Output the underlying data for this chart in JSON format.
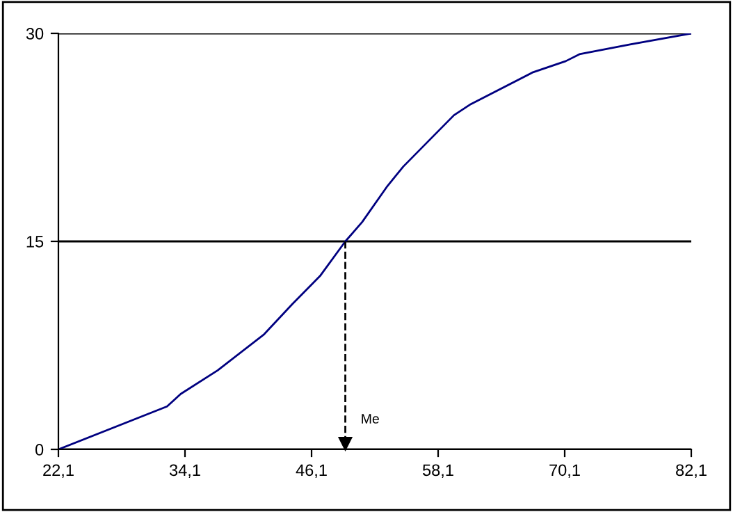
{
  "chart_data": {
    "type": "line",
    "x": [
      22.1,
      32.4,
      33.7,
      37.2,
      41.6,
      44.3,
      46.9,
      49.3,
      50.9,
      53.3,
      54.8,
      59.6,
      61.2,
      67.1,
      70.2,
      71.5,
      76.3,
      82.1
    ],
    "series": [
      {
        "color": "#000080",
        "values": [
          0,
          3.1,
          4.0,
          5.7,
          8.3,
          10.5,
          12.5,
          15.0,
          16.4,
          19.0,
          20.4,
          24.1,
          24.9,
          27.2,
          28.0,
          28.5,
          29.2,
          30
        ]
      }
    ],
    "xlim": [
      22.1,
      82.1
    ],
    "xticks": [
      {
        "value": 22.1,
        "label": "22,1"
      },
      {
        "value": 34.1,
        "label": "34,1"
      },
      {
        "value": 46.1,
        "label": "46,1"
      },
      {
        "value": 58.1,
        "label": "58,1"
      },
      {
        "value": 70.1,
        "label": "70,1"
      },
      {
        "value": 82.1,
        "label": "82,1"
      }
    ],
    "ylim": [
      0,
      30
    ],
    "yticks": [
      0,
      15,
      30
    ],
    "grid": "y",
    "marker": "none",
    "line_style": "solid",
    "ref_lines": [
      {
        "axis": "x",
        "value": 49.3,
        "label": "Me",
        "line_style": "dashed",
        "color": "#000000"
      }
    ]
  }
}
